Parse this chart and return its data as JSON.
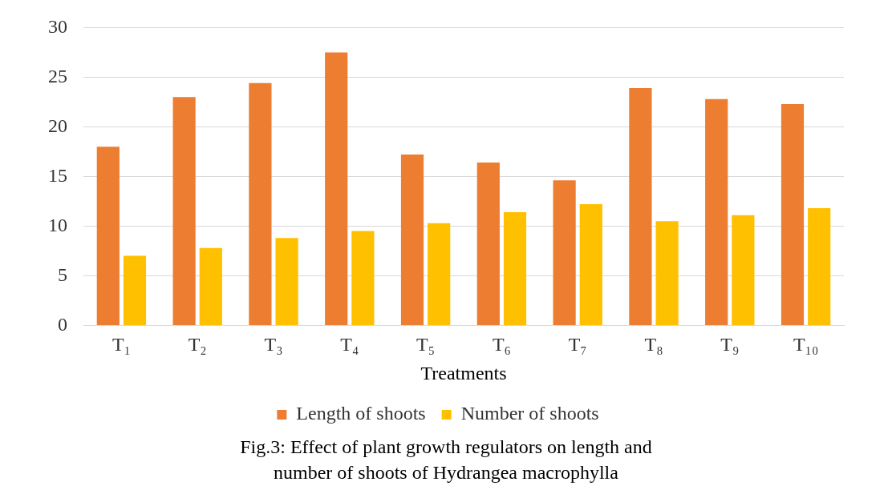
{
  "chart_data": {
    "type": "bar",
    "title": "Fig.3: Effect of plant growth regulators on length and number of shoots of Hydrangea macrophylla",
    "xlabel": "Treatments",
    "categories": [
      "T₁",
      "T₂",
      "T₃",
      "T₄",
      "T₅",
      "T₆",
      "T₇",
      "T₈",
      "T₉",
      "T₁₀"
    ],
    "series": [
      {
        "name": "Length of shoots",
        "color": "#ed7d31",
        "values": [
          18.0,
          23.0,
          24.4,
          27.5,
          17.2,
          16.4,
          14.6,
          23.9,
          22.8,
          22.3
        ]
      },
      {
        "name": "Number of shoots",
        "color": "#ffc000",
        "values": [
          7.0,
          7.8,
          8.8,
          9.5,
          10.3,
          11.4,
          12.2,
          10.5,
          11.1,
          11.8
        ]
      }
    ],
    "ylim": [
      0,
      30
    ],
    "yticks": [
      0,
      5,
      10,
      15,
      20,
      25,
      30
    ],
    "grid": "y",
    "legend": "bottom"
  }
}
